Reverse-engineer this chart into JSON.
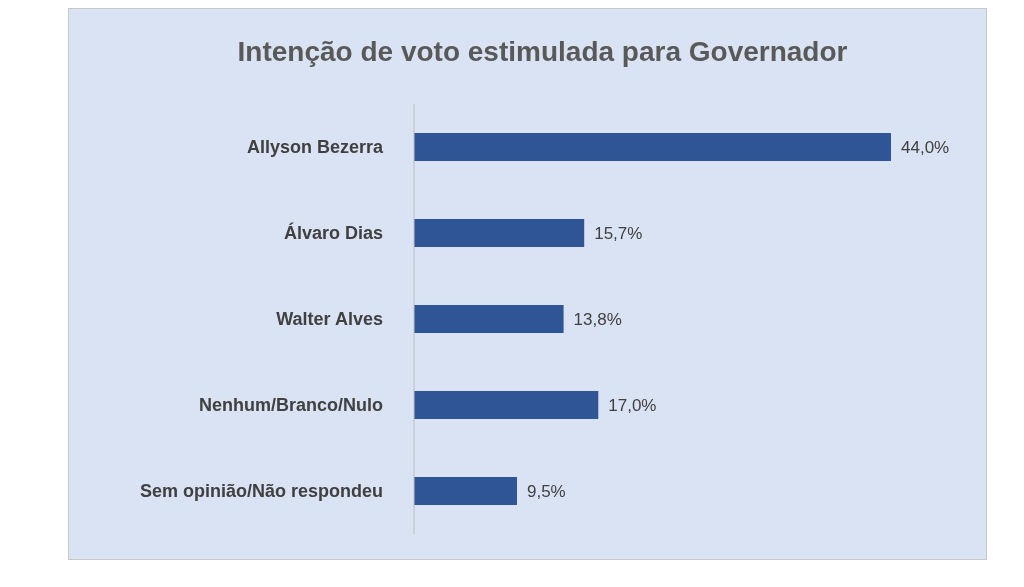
{
  "chart_data": {
    "type": "bar",
    "orientation": "horizontal",
    "title": "Intenção de voto estimulada para Governador",
    "categories": [
      "Allyson Bezerra",
      "Álvaro Dias",
      "Walter Alves",
      "Nenhum/Branco/Nulo",
      "Sem opinião/Não respondeu"
    ],
    "values": [
      44.0,
      15.7,
      13.8,
      17.0,
      9.5
    ],
    "value_labels": [
      "44,0%",
      "15,7%",
      "13,8%",
      "17,0%",
      "9,5%"
    ],
    "color": "#2f5597",
    "grid": false,
    "legend": false
  }
}
